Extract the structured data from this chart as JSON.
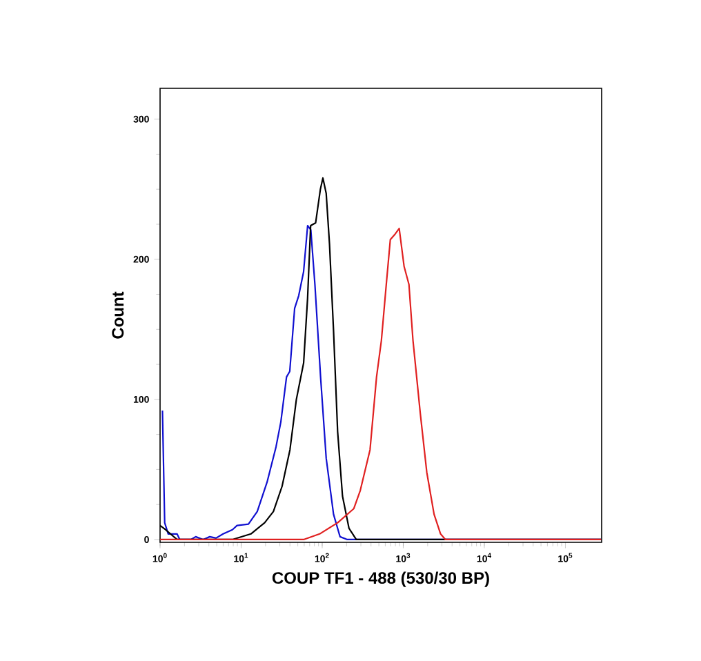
{
  "chart_data": {
    "type": "line",
    "xlabel": "COUP TF1 - 488 (530/30 BP)",
    "ylabel": "Count",
    "log": "x",
    "grid": false,
    "marker": "none",
    "line_style": "solid",
    "xlim": [
      1,
      280000
    ],
    "ylim": [
      -2,
      322
    ],
    "xticks": [
      {
        "value": 1,
        "label": "10$^{0}$"
      },
      {
        "value": 10,
        "label": "10$^{1}$"
      },
      {
        "value": 100,
        "label": "10$^{2}$"
      },
      {
        "value": 1000,
        "label": "10$^{3}$"
      },
      {
        "value": 10000,
        "label": "10$^{4}$"
      },
      {
        "value": 100000,
        "label": "10$^{5}$"
      }
    ],
    "yticks": [
      0,
      100,
      200,
      300
    ],
    "series": [
      {
        "color": "#1010d0",
        "x": [
          1.07,
          1.14,
          1.26,
          1.62,
          1.75,
          2.4,
          2.75,
          3.4,
          4.1,
          4.9,
          6.0,
          7.8,
          8.9,
          12.3,
          15.8,
          20.9,
          26.9,
          30.9,
          36.3,
          39.8,
          45.7,
          51.3,
          58.9,
          66.1,
          72.4,
          81.3,
          95.5,
          112,
          138,
          166,
          204,
          275000
        ],
        "values": [
          92,
          12,
          4,
          4,
          0,
          0,
          2,
          0,
          2,
          1,
          4,
          7,
          10,
          11,
          20,
          41,
          66,
          84,
          116,
          120,
          165,
          174,
          191,
          224,
          221,
          182,
          116,
          58,
          18,
          2,
          0,
          0
        ]
      },
      {
        "color": "#000000",
        "x": [
          1.0,
          1.17,
          1.62,
          7.8,
          13.2,
          19.5,
          25,
          32,
          40,
          48,
          59,
          66,
          72,
          83,
          95,
          102,
          112,
          123,
          138,
          155,
          178,
          214,
          263,
          275000
        ],
        "values": [
          10,
          7,
          0,
          0,
          4,
          12,
          20,
          38,
          64,
          100,
          126,
          172,
          224,
          226,
          250,
          258,
          247,
          211,
          149,
          77,
          31,
          8,
          0,
          0
        ]
      },
      {
        "color": "#e02020",
        "x": [
          1.0,
          59,
          93,
          155,
          245,
          295,
          389,
          468,
          537,
          617,
          692,
          794,
          891,
          1023,
          1175,
          1318,
          1622,
          1950,
          2399,
          2884,
          3311,
          275000
        ],
        "values": [
          0,
          0,
          4,
          12,
          22,
          35,
          64,
          116,
          142,
          182,
          214,
          218,
          222,
          195,
          182,
          142,
          90,
          48,
          18,
          4,
          0,
          0
        ]
      }
    ]
  }
}
